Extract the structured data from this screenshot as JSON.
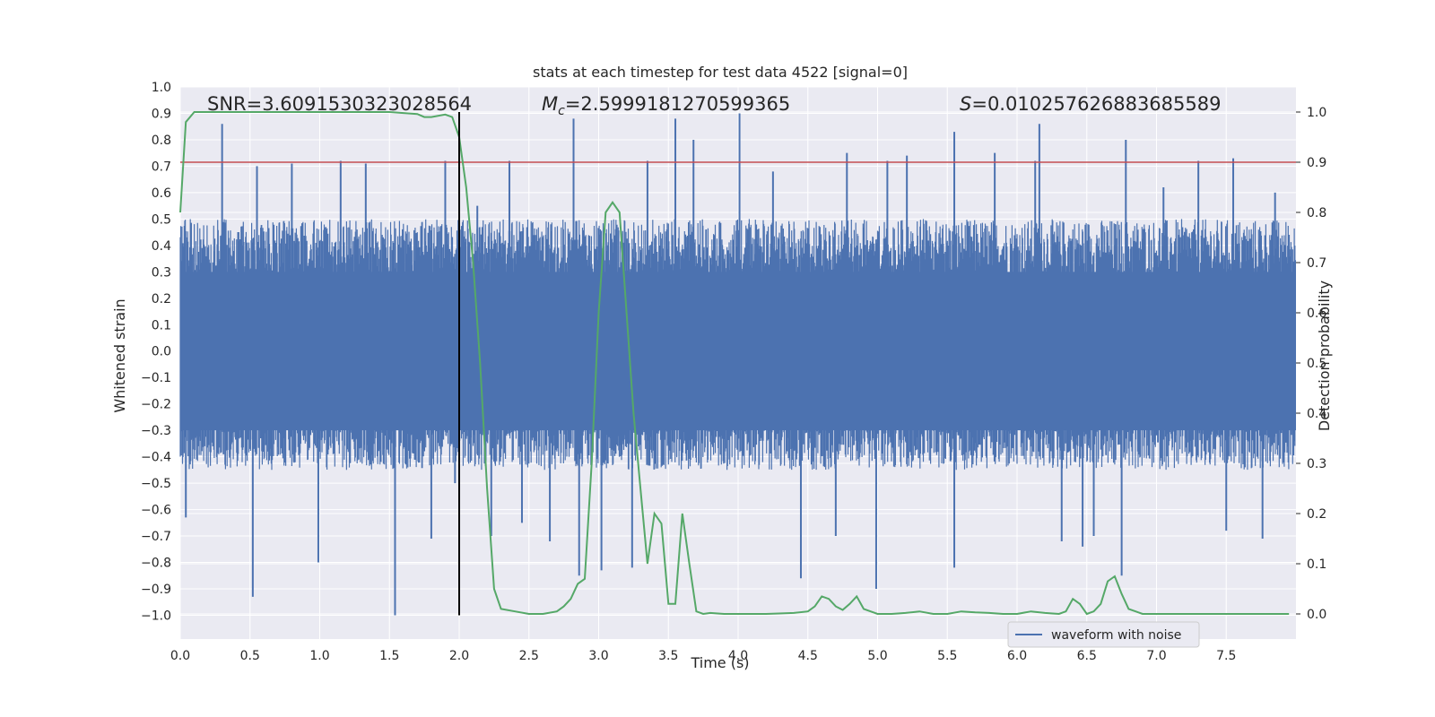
{
  "chart_data": {
    "type": "line",
    "title": "stats at each timestep for test data 4522 [signal=0]",
    "xlabel": "Time (s)",
    "ylabel_left": "Whitened strain",
    "ylabel_right": "Detection probability",
    "xlim": [
      0.0,
      8.0
    ],
    "ylim_left": [
      -1.09,
      1.0
    ],
    "ylim_right": [
      -0.05,
      1.05
    ],
    "xticks": [
      "0.0",
      "0.5",
      "1.0",
      "1.5",
      "2.0",
      "2.5",
      "3.0",
      "3.5",
      "4.0",
      "4.5",
      "5.0",
      "5.5",
      "6.0",
      "6.5",
      "7.0",
      "7.5"
    ],
    "yticks_left": [
      "1.0",
      "0.9",
      "0.8",
      "0.7",
      "0.6",
      "0.5",
      "0.4",
      "0.3",
      "0.2",
      "0.1",
      "0.0",
      "−0.1",
      "−0.2",
      "−0.3",
      "−0.4",
      "−0.5",
      "−0.6",
      "−0.7",
      "−0.8",
      "−0.9",
      "−1.0"
    ],
    "yticks_right": [
      "0.0",
      "0.1",
      "0.2",
      "0.3",
      "0.4",
      "0.5",
      "0.6",
      "0.7",
      "0.8",
      "0.9",
      "1.0"
    ],
    "grid": true,
    "legend": {
      "placement": "bottom-right",
      "entries": [
        "waveform with noise"
      ]
    },
    "annotations": {
      "snr": "SNR=3.6091530323028564",
      "mc_symbol": "M",
      "mc_sub": "c",
      "mc_value": "=2.5999181270599365",
      "s_symbol": "S",
      "s_value": "=0.010257626883685589"
    },
    "threshold_right": 0.9,
    "marker_time": 2.0,
    "series": [
      {
        "name": "waveform with noise",
        "axis": "left",
        "color": "#4c72b0",
        "sample_rate": 250,
        "envelope_upper": 0.5,
        "envelope_lower": -0.45,
        "spikes": [
          {
            "t": 0.04,
            "v": -0.63
          },
          {
            "t": 0.3,
            "v": 0.86
          },
          {
            "t": 0.52,
            "v": -0.93
          },
          {
            "t": 0.8,
            "v": 0.71
          },
          {
            "t": 0.99,
            "v": -0.8
          },
          {
            "t": 1.15,
            "v": 0.72
          },
          {
            "t": 1.33,
            "v": 0.71
          },
          {
            "t": 1.54,
            "v": -1.0
          },
          {
            "t": 1.8,
            "v": -0.71
          },
          {
            "t": 1.9,
            "v": 0.72
          },
          {
            "t": 1.97,
            "v": -0.5
          },
          {
            "t": 2.13,
            "v": 0.55
          },
          {
            "t": 2.23,
            "v": -0.7
          },
          {
            "t": 2.36,
            "v": 0.72
          },
          {
            "t": 2.65,
            "v": -0.72
          },
          {
            "t": 2.82,
            "v": 0.88
          },
          {
            "t": 2.86,
            "v": -0.85
          },
          {
            "t": 3.02,
            "v": -0.83
          },
          {
            "t": 3.24,
            "v": -0.82
          },
          {
            "t": 3.55,
            "v": 0.88
          },
          {
            "t": 3.68,
            "v": 0.8
          },
          {
            "t": 4.01,
            "v": 0.9
          },
          {
            "t": 4.45,
            "v": -0.86
          },
          {
            "t": 4.7,
            "v": -0.7
          },
          {
            "t": 4.78,
            "v": 0.75
          },
          {
            "t": 4.99,
            "v": -0.9
          },
          {
            "t": 5.07,
            "v": 0.72
          },
          {
            "t": 5.21,
            "v": 0.74
          },
          {
            "t": 5.55,
            "v": -0.82
          },
          {
            "t": 5.55,
            "v": 0.83
          },
          {
            "t": 5.84,
            "v": 0.75
          },
          {
            "t": 6.13,
            "v": 0.72
          },
          {
            "t": 6.16,
            "v": 0.86
          },
          {
            "t": 6.32,
            "v": -0.72
          },
          {
            "t": 6.47,
            "v": -0.74
          },
          {
            "t": 6.55,
            "v": -0.7
          },
          {
            "t": 6.75,
            "v": -0.85
          },
          {
            "t": 6.78,
            "v": 0.8
          },
          {
            "t": 7.3,
            "v": 0.72
          },
          {
            "t": 7.55,
            "v": 0.73
          },
          {
            "t": 7.76,
            "v": -0.71
          },
          {
            "t": 7.85,
            "v": 0.6
          },
          {
            "t": 0.55,
            "v": 0.7
          },
          {
            "t": 2.45,
            "v": -0.65
          },
          {
            "t": 3.35,
            "v": 0.72
          },
          {
            "t": 4.25,
            "v": 0.68
          },
          {
            "t": 7.05,
            "v": 0.62
          },
          {
            "t": 7.5,
            "v": -0.68
          }
        ]
      },
      {
        "name": "",
        "axis": "right",
        "color": "#55a868",
        "x": [
          0.0,
          0.04,
          0.1,
          0.15,
          0.25,
          0.5,
          0.75,
          1.0,
          1.25,
          1.5,
          1.6,
          1.7,
          1.75,
          1.8,
          1.9,
          1.95,
          2.0,
          2.05,
          2.1,
          2.15,
          2.2,
          2.25,
          2.3,
          2.4,
          2.5,
          2.6,
          2.7,
          2.75,
          2.8,
          2.85,
          2.9,
          2.95,
          3.0,
          3.05,
          3.1,
          3.15,
          3.2,
          3.25,
          3.3,
          3.35,
          3.4,
          3.45,
          3.5,
          3.55,
          3.6,
          3.65,
          3.7,
          3.75,
          3.8,
          3.9,
          4.0,
          4.2,
          4.4,
          4.5,
          4.55,
          4.6,
          4.65,
          4.7,
          4.75,
          4.8,
          4.85,
          4.9,
          4.95,
          5.0,
          5.1,
          5.2,
          5.3,
          5.4,
          5.5,
          5.6,
          5.7,
          5.8,
          5.9,
          6.0,
          6.1,
          6.2,
          6.3,
          6.35,
          6.4,
          6.45,
          6.5,
          6.55,
          6.6,
          6.65,
          6.7,
          6.75,
          6.8,
          6.85,
          6.9,
          7.0,
          7.1,
          7.2,
          7.4,
          7.6,
          7.8,
          7.95
        ],
        "y": [
          0.8,
          0.98,
          1.0,
          1.0,
          1.0,
          1.0,
          1.0,
          1.0,
          1.0,
          1.0,
          0.998,
          0.996,
          0.99,
          0.99,
          0.995,
          0.99,
          0.95,
          0.85,
          0.7,
          0.5,
          0.25,
          0.05,
          0.01,
          0.005,
          0.0,
          0.0,
          0.005,
          0.015,
          0.03,
          0.06,
          0.07,
          0.3,
          0.6,
          0.8,
          0.82,
          0.8,
          0.6,
          0.4,
          0.25,
          0.1,
          0.2,
          0.18,
          0.02,
          0.02,
          0.2,
          0.1,
          0.005,
          0.0,
          0.002,
          0.0,
          0.0,
          0.0,
          0.002,
          0.005,
          0.015,
          0.035,
          0.03,
          0.015,
          0.008,
          0.02,
          0.035,
          0.01,
          0.005,
          0.0,
          0.0,
          0.002,
          0.005,
          0.0,
          0.0,
          0.005,
          0.003,
          0.002,
          0.0,
          0.0,
          0.005,
          0.002,
          0.0,
          0.005,
          0.03,
          0.02,
          0.0,
          0.005,
          0.02,
          0.065,
          0.075,
          0.04,
          0.01,
          0.005,
          0.0,
          0.0,
          0.0,
          0.0,
          0.0,
          0.0,
          0.0,
          0.0
        ]
      }
    ]
  }
}
